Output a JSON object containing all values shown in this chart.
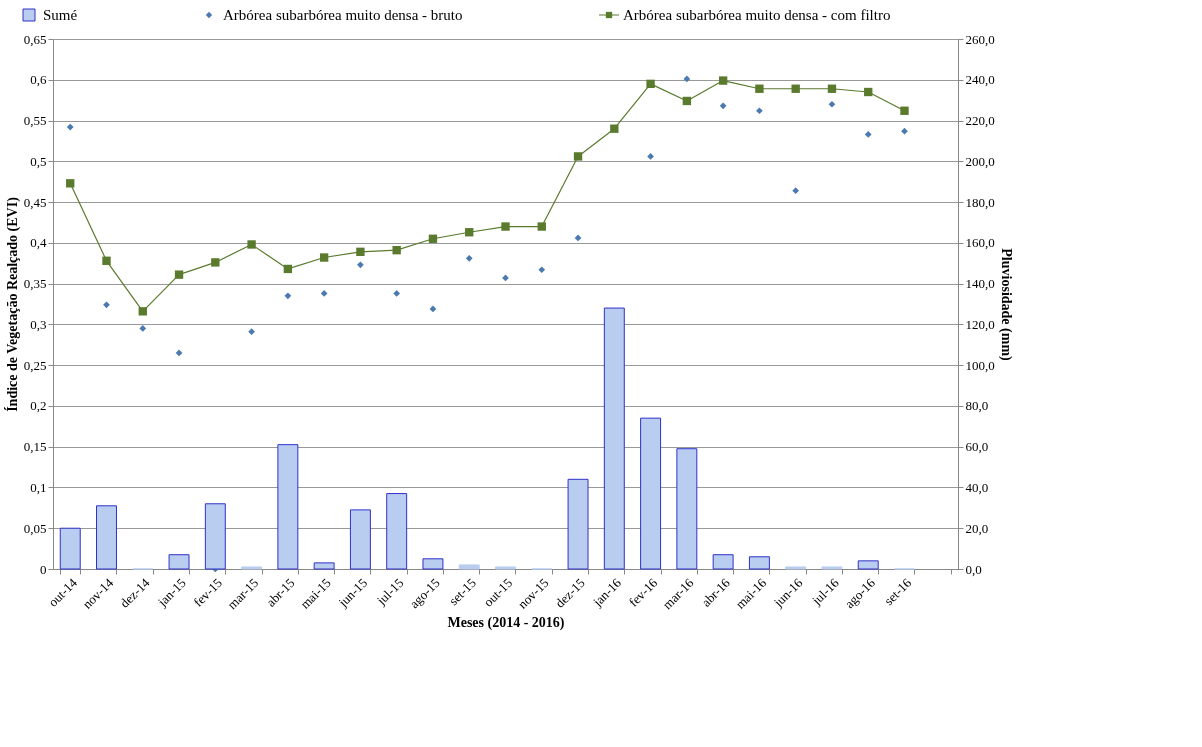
{
  "chart_data": {
    "type": "bar",
    "xlabel": "Meses  (2014  - 2016)",
    "ylabel": "Índice de Vegetação Realçado (EVI)",
    "y2label": "Pluviosidade (mm)",
    "categories": [
      "out-14",
      "nov-14",
      "dez-14",
      "jan-15",
      "fev-15",
      "mar-15",
      "abr-15",
      "mai-15",
      "jun-15",
      "jul-15",
      "ago-15",
      "set-15",
      "out-15",
      "nov-15",
      "dez-15",
      "jan-16",
      "fev-16",
      "mar-16",
      "abr-16",
      "mai-16",
      "jun-16",
      "jul-16",
      "ago-16",
      "set-16",
      null
    ],
    "series": [
      {
        "name": "Sumé",
        "axis": "y2",
        "color": "#b9cdf0",
        "values": [
          20,
          31,
          0,
          7,
          32,
          1,
          61,
          3,
          29,
          37,
          5,
          2,
          1,
          0,
          44,
          128,
          74,
          59,
          7,
          6,
          1,
          1,
          4,
          0,
          null
        ]
      },
      {
        "name": "Arbórea subarbórea muito densa - bruto",
        "type": "scatter",
        "marker": "diamond",
        "color": "#4a7ab0",
        "values": [
          0.542,
          0.324,
          0.295,
          0.265,
          0.0,
          0.291,
          0.335,
          0.338,
          0.373,
          0.338,
          0.319,
          0.381,
          0.357,
          0.367,
          0.406,
          null,
          0.506,
          0.601,
          0.568,
          0.562,
          0.464,
          0.57,
          0.533,
          0.537,
          null
        ]
      },
      {
        "name": "Arbórea subarbórea muito densa - com filtro",
        "type": "line",
        "marker": "square",
        "color": "#5a7a2e",
        "values": [
          0.473,
          0.378,
          0.316,
          0.361,
          0.376,
          0.398,
          0.368,
          0.382,
          0.389,
          0.391,
          0.405,
          0.413,
          0.42,
          0.42,
          0.506,
          0.54,
          0.595,
          0.574,
          0.599,
          0.589,
          0.589,
          0.589,
          0.585,
          0.562,
          null
        ]
      }
    ],
    "ylim": [
      0,
      0.65
    ],
    "yticks": [
      0,
      {
        "value": 0.05,
        "label": "0,05"
      },
      {
        "value": 0.1,
        "label": "0,1"
      },
      {
        "value": 0.15,
        "label": "0,15"
      },
      {
        "value": 0.2,
        "label": "0,2"
      },
      {
        "value": 0.25,
        "label": "0,25"
      },
      {
        "value": 0.3,
        "label": "0,3"
      },
      {
        "value": 0.35,
        "label": "0,35"
      },
      {
        "value": 0.4,
        "label": "0,4"
      },
      {
        "value": 0.45,
        "label": "0,45"
      },
      {
        "value": 0.5,
        "label": "0,5"
      },
      {
        "value": 0.55,
        "label": "0,55"
      },
      {
        "value": 0.6,
        "label": "0,6"
      },
      {
        "value": 0.65,
        "label": "0,65"
      }
    ],
    "y2lim": [
      0,
      260
    ],
    "y2ticks": [
      {
        "value": 0,
        "label": "0,0"
      },
      {
        "value": 20,
        "label": "20,0"
      },
      {
        "value": 40,
        "label": "40,0"
      },
      {
        "value": 60,
        "label": "60,0"
      },
      {
        "value": 80,
        "label": "80,0"
      },
      {
        "value": 100,
        "label": "100,0"
      },
      {
        "value": 120,
        "label": "120,0"
      },
      {
        "value": 140,
        "label": "140,0"
      },
      {
        "value": 160,
        "label": "160,0"
      },
      {
        "value": 180,
        "label": "180,0"
      },
      {
        "value": 200,
        "label": "200,0"
      },
      {
        "value": 220,
        "label": "220,0"
      },
      {
        "value": 240,
        "label": "240,0"
      },
      {
        "value": 260,
        "label": "260,0"
      }
    ],
    "grid": "y",
    "legend": "top"
  }
}
